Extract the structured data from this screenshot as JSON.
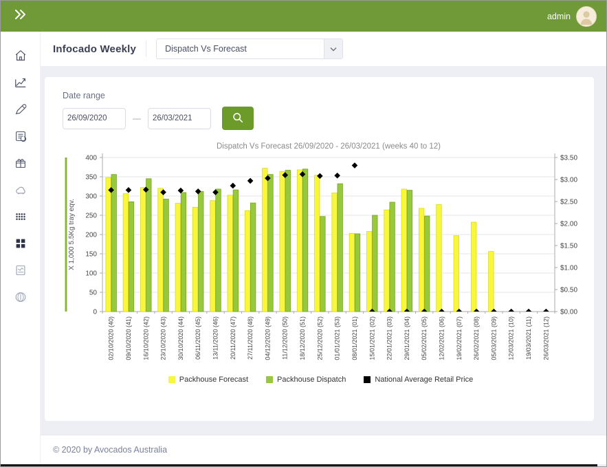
{
  "header": {
    "user": "admin"
  },
  "toolbar": {
    "title": "Infocado Weekly",
    "report_selector_value": "Dispatch Vs Forecast"
  },
  "sidebar": {
    "items": [
      "home",
      "line-chart",
      "pencil",
      "clipboard-sync",
      "package",
      "cloud",
      "dots-grid",
      "squares-grid",
      "report",
      "coin"
    ],
    "active_item": "squares-grid"
  },
  "filters": {
    "label": "Date range",
    "from": "26/09/2020",
    "separator": "—",
    "to": "26/03/2021",
    "search_icon": "magnifier"
  },
  "colors": {
    "header_green": "#6f9a37",
    "button_green": "#6d9b2a",
    "bar_yellow": "#f9f73d",
    "bar_green": "#98c93c",
    "marker_black": "#000000",
    "accent_line_green": "#8ab43f"
  },
  "chart_data": {
    "type": "bar",
    "title": "Dispatch Vs Forecast 26/09/2020 - 26/03/2021 (weeks 40 to 12)",
    "grid": true,
    "legend_position": "bottom",
    "left_axis": {
      "title": "X 1,000 5.5Kg tray eqv.",
      "ticks": [
        0,
        50,
        100,
        150,
        200,
        250,
        300,
        350,
        400
      ],
      "max": 400
    },
    "right_axis": {
      "ticks": [
        "$0.00",
        "$0.50",
        "$1.00",
        "$1.50",
        "$2.00",
        "$2.50",
        "$3.00",
        "$3.50"
      ],
      "max": 3.5
    },
    "categories": [
      "02/10/2020 (40)",
      "09/10/2020 (41)",
      "16/10/2020 (42)",
      "23/10/2020 (43)",
      "30/10/2020 (44)",
      "06/11/2020 (45)",
      "13/11/2020 (46)",
      "20/11/2020 (47)",
      "27/11/2020 (48)",
      "04/12/2020 (49)",
      "11/12/2020 (50)",
      "18/12/2020 (51)",
      "25/12/2020 (52)",
      "01/01/2021 (53)",
      "08/01/2021 (01)",
      "15/01/2021 (02)",
      "22/01/2021 (03)",
      "29/01/2021 (04)",
      "05/02/2021 (05)",
      "12/02/2021 (06)",
      "19/02/2021 (07)",
      "26/02/2021 (08)",
      "05/03/2021 (09)",
      "12/03/2021 (10)",
      "19/03/2021 (11)",
      "26/03/2021 (12)"
    ],
    "series": [
      {
        "name": "Packhouse Forecast",
        "kind": "bar",
        "color": "#f9f73d",
        "stroke": "#d9d619",
        "values": [
          348,
          306,
          322,
          320,
          281,
          271,
          288,
          302,
          262,
          372,
          364,
          368,
          354,
          308,
          203,
          208,
          264,
          318,
          268,
          278,
          197,
          232,
          156,
          null,
          null,
          null
        ]
      },
      {
        "name": "Packhouse Dispatch",
        "kind": "bar",
        "color": "#98c93c",
        "stroke": "#74a31f",
        "values": [
          356,
          285,
          345,
          292,
          309,
          312,
          318,
          316,
          282,
          356,
          367,
          370,
          247,
          332,
          202,
          250,
          284,
          315,
          248,
          null,
          null,
          null,
          null,
          null,
          null,
          null
        ]
      },
      {
        "name": "National Average Retail Price",
        "kind": "diamond",
        "axis": "right",
        "color": "#000000",
        "values": [
          2.76,
          2.76,
          2.77,
          2.71,
          2.75,
          2.73,
          2.71,
          2.86,
          2.97,
          3.03,
          3.1,
          3.12,
          3.08,
          3.09,
          3.32,
          0,
          0,
          0,
          0,
          0,
          0,
          0,
          0,
          0,
          0,
          0
        ]
      }
    ]
  },
  "footer": {
    "copyright": "© 2020 by Avocados Australia"
  }
}
